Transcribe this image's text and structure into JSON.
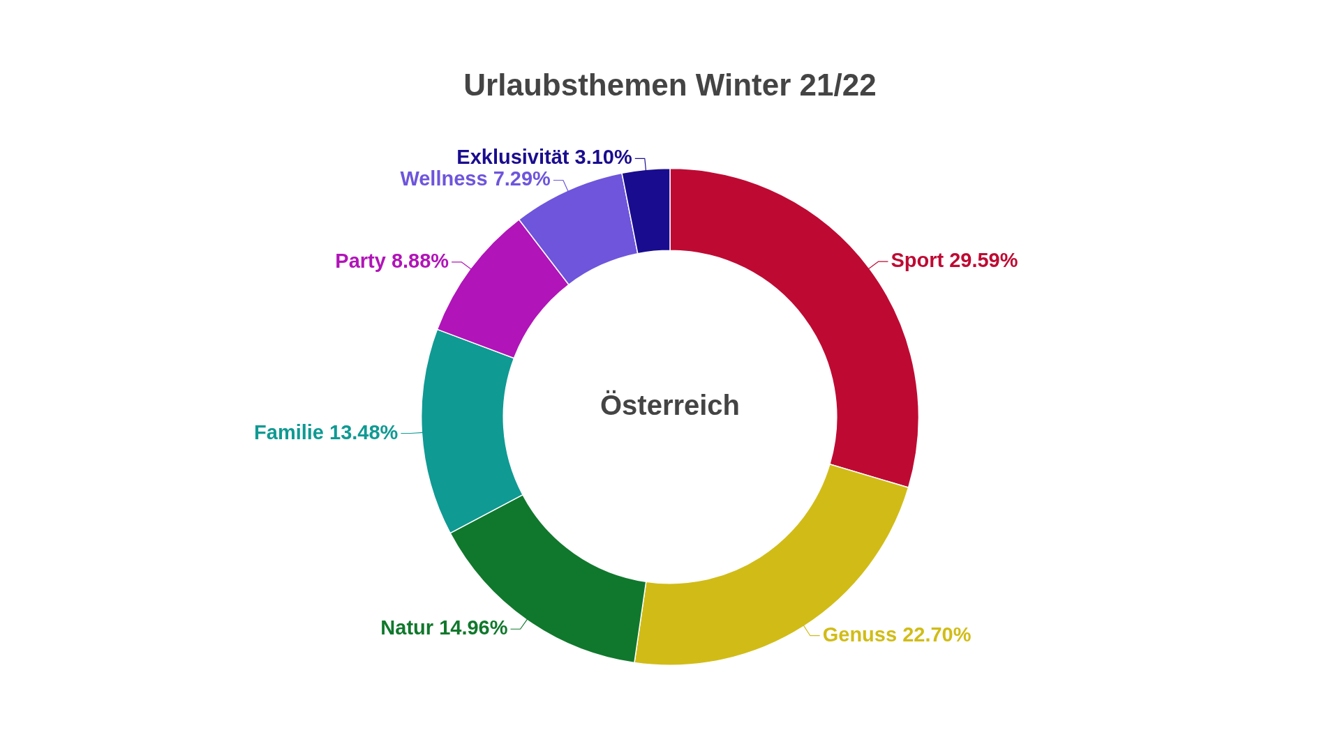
{
  "chart_data": {
    "type": "donut",
    "title": "Urlaubsthemen Winter 21/22",
    "categories": [
      "Sport",
      "Genuss",
      "Natur",
      "Familie",
      "Party",
      "Wellness",
      "Exklusivität"
    ],
    "values": [
      29.59,
      22.7,
      14.96,
      13.48,
      8.88,
      7.29,
      3.1
    ],
    "value_labels": [
      "29.59%",
      "22.70%",
      "14.96%",
      "13.48%",
      "8.88%",
      "7.29%",
      "3.10%"
    ],
    "colors": [
      "#be0a33",
      "#d1bc17",
      "#10782c",
      "#0f9a93",
      "#b114b8",
      "#6e55dc",
      "#1a0c8f"
    ],
    "annotations": [
      "Österreich"
    ],
    "legend": false
  }
}
